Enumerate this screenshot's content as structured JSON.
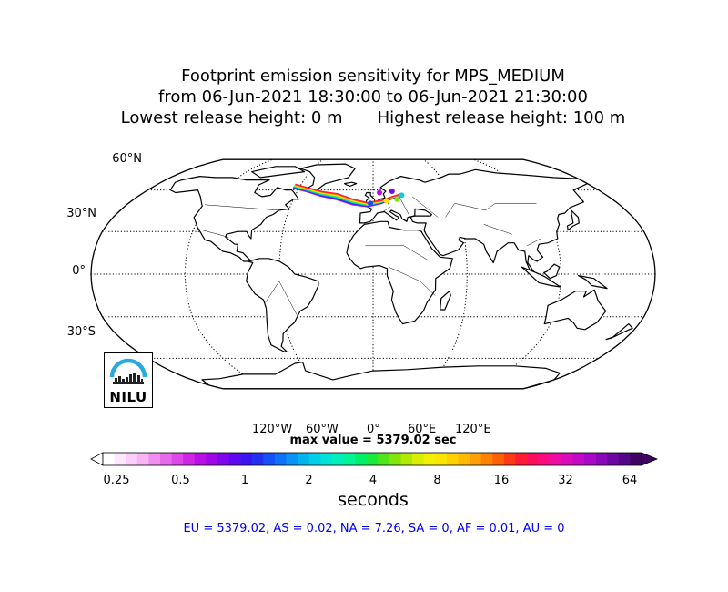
{
  "title": {
    "line1": "Footprint emission sensitivity for MPS_MEDIUM",
    "line2": "from 06-Jun-2021 18:30:00 to 06-Jun-2021 21:30:00",
    "line3_left": "Lowest release height: 0 m",
    "line3_right": "Highest release height: 100 m"
  },
  "map": {
    "projection": "robinson",
    "lat_labels": [
      "60°N",
      "30°N",
      "0°",
      "30°S"
    ],
    "lon_labels": [
      "120°W",
      "60°W",
      "0°",
      "60°E",
      "120°E"
    ],
    "land_color": "#ffffff",
    "coastline_color": "#000000",
    "gridline_style": "dotted"
  },
  "logo": {
    "text": "NILU",
    "arc_color": "#29a9e0"
  },
  "max_value_text": "max value = 5379.02 sec",
  "colorbar": {
    "tick_labels": [
      "0.25",
      "0.5",
      "1",
      "2",
      "4",
      "8",
      "16",
      "32",
      "64"
    ],
    "label": "seconds",
    "extend": "both",
    "colors": [
      "#ffffff",
      "#fde7fc",
      "#fbcffa",
      "#f7b4f6",
      "#f08ef1",
      "#e86aec",
      "#de48e8",
      "#cf26e6",
      "#b90fe6",
      "#9f06e8",
      "#7f05ec",
      "#5e07f0",
      "#3d14f2",
      "#2530f5",
      "#1650f7",
      "#0d72f6",
      "#0794f3",
      "#02b4ee",
      "#00cfe8",
      "#00e3d9",
      "#00f0bd",
      "#00f597",
      "#00f06a",
      "#1bea3c",
      "#4fe51a",
      "#83e60a",
      "#b1ea05",
      "#d8ef04",
      "#f3f003",
      "#fde502",
      "#ffd101",
      "#ffb901",
      "#ff9f01",
      "#ff8202",
      "#ff6108",
      "#ff3b15",
      "#ff1a35",
      "#ff0c5c",
      "#fb0b83",
      "#ee0ca4",
      "#db0dbb",
      "#c40ac7",
      "#a908c6",
      "#8b07b9",
      "#6e06a2",
      "#540585",
      "#3d0462"
    ]
  },
  "region_totals": "EU = 5379.02,  AS = 0.02,  NA = 7.26,  SA = 0,  AF = 0.01,  AU = 0"
}
